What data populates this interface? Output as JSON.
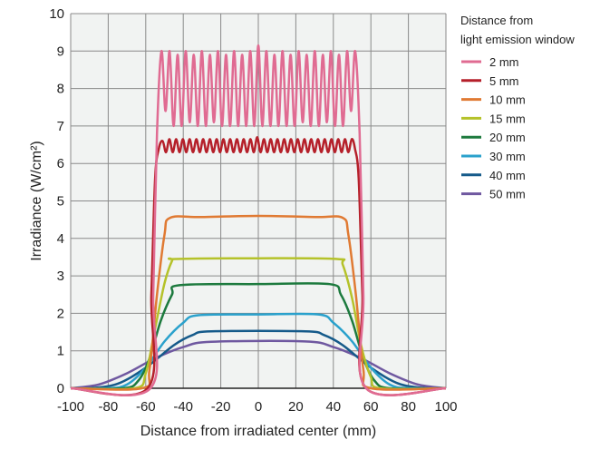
{
  "chart_data": {
    "type": "line",
    "xlabel": "Distance from irradiated center (mm)",
    "ylabel": "Irradiance (W/cm²)",
    "xlim": [
      -100,
      100
    ],
    "ylim": [
      0,
      10
    ],
    "xticks": [
      -100,
      -80,
      -60,
      -40,
      -20,
      0,
      20,
      40,
      60,
      80,
      100
    ],
    "yticks": [
      0,
      1,
      2,
      3,
      4,
      5,
      6,
      7,
      8,
      9,
      10
    ],
    "grid": true,
    "legend": {
      "title": [
        "Distance from",
        "light emission window"
      ],
      "placement": "right"
    },
    "series": [
      {
        "name": "2 mm",
        "color": "#e06b92",
        "points": [
          [
            -100,
            0
          ],
          [
            -57.5,
            0
          ],
          [
            -56,
            2.5
          ],
          [
            -54,
            6.8
          ],
          [
            -51.6,
            9.0
          ],
          [
            -49.45,
            7.4
          ],
          [
            -47.3,
            9.0
          ],
          [
            -45.15,
            7.0
          ],
          [
            -43,
            8.9
          ],
          [
            -40.85,
            7.0
          ],
          [
            -38.7,
            9.0
          ],
          [
            -36.55,
            7.1
          ],
          [
            -34.4,
            8.9
          ],
          [
            -32.25,
            7.0
          ],
          [
            -30.1,
            9.0
          ],
          [
            -27.95,
            7.0
          ],
          [
            -25.8,
            8.9
          ],
          [
            -23.65,
            7.1
          ],
          [
            -21.5,
            9.0
          ],
          [
            -19.35,
            7.0
          ],
          [
            -17.2,
            8.9
          ],
          [
            -15.05,
            7.0
          ],
          [
            -12.9,
            9.0
          ],
          [
            -10.75,
            7.0
          ],
          [
            -8.6,
            8.9
          ],
          [
            -6.45,
            7.0
          ],
          [
            -4.3,
            9.0
          ],
          [
            -2.15,
            7.0
          ],
          [
            0,
            9.15
          ],
          [
            2.15,
            7.0
          ],
          [
            4.3,
            9.0
          ],
          [
            6.45,
            7.0
          ],
          [
            8.6,
            8.9
          ],
          [
            10.75,
            7.0
          ],
          [
            12.9,
            9.0
          ],
          [
            15.05,
            7.0
          ],
          [
            17.2,
            8.9
          ],
          [
            19.35,
            7.0
          ],
          [
            21.5,
            9.0
          ],
          [
            23.65,
            7.1
          ],
          [
            25.8,
            8.9
          ],
          [
            27.95,
            7.0
          ],
          [
            30.1,
            9.0
          ],
          [
            32.25,
            7.0
          ],
          [
            34.4,
            8.9
          ],
          [
            36.55,
            7.1
          ],
          [
            38.7,
            9.0
          ],
          [
            40.85,
            7.0
          ],
          [
            43,
            8.9
          ],
          [
            45.15,
            7.0
          ],
          [
            47.3,
            9.0
          ],
          [
            49.45,
            7.4
          ],
          [
            51.6,
            9.0
          ],
          [
            54,
            6.8
          ],
          [
            56,
            2.5
          ],
          [
            57.5,
            0
          ],
          [
            100,
            0
          ]
        ]
      },
      {
        "name": "5 mm",
        "color": "#b5202a",
        "points": [
          [
            -100,
            0
          ],
          [
            -59,
            0
          ],
          [
            -57,
            2.5
          ],
          [
            -55,
            5.6
          ],
          [
            -53,
            6.4
          ],
          [
            -51,
            6.6
          ],
          [
            -49.2,
            6.3
          ],
          [
            -47.4,
            6.65
          ],
          [
            -45.6,
            6.3
          ],
          [
            -43.8,
            6.65
          ],
          [
            -42,
            6.3
          ],
          [
            -40.2,
            6.65
          ],
          [
            -38.4,
            6.3
          ],
          [
            -36.6,
            6.65
          ],
          [
            -34.8,
            6.3
          ],
          [
            -33,
            6.65
          ],
          [
            -31.2,
            6.3
          ],
          [
            -29.4,
            6.65
          ],
          [
            -27.6,
            6.3
          ],
          [
            -25.8,
            6.65
          ],
          [
            -24,
            6.3
          ],
          [
            -22.2,
            6.65
          ],
          [
            -20.4,
            6.3
          ],
          [
            -18.6,
            6.65
          ],
          [
            -16.8,
            6.3
          ],
          [
            -15,
            6.65
          ],
          [
            -13.2,
            6.3
          ],
          [
            -11.4,
            6.65
          ],
          [
            -9.6,
            6.3
          ],
          [
            -7.8,
            6.65
          ],
          [
            -6,
            6.3
          ],
          [
            -4.2,
            6.65
          ],
          [
            -2.4,
            6.3
          ],
          [
            -0.6,
            6.7
          ],
          [
            1.2,
            6.3
          ],
          [
            3,
            6.65
          ],
          [
            4.8,
            6.3
          ],
          [
            6.6,
            6.65
          ],
          [
            8.4,
            6.3
          ],
          [
            10.2,
            6.65
          ],
          [
            12,
            6.3
          ],
          [
            13.8,
            6.65
          ],
          [
            15.6,
            6.3
          ],
          [
            17.4,
            6.65
          ],
          [
            19.2,
            6.3
          ],
          [
            21,
            6.65
          ],
          [
            22.8,
            6.3
          ],
          [
            24.6,
            6.65
          ],
          [
            26.4,
            6.3
          ],
          [
            28.2,
            6.65
          ],
          [
            30,
            6.3
          ],
          [
            31.8,
            6.65
          ],
          [
            33.6,
            6.3
          ],
          [
            35.4,
            6.65
          ],
          [
            37.2,
            6.3
          ],
          [
            39,
            6.65
          ],
          [
            40.8,
            6.3
          ],
          [
            42.6,
            6.65
          ],
          [
            44.4,
            6.3
          ],
          [
            46.2,
            6.65
          ],
          [
            48,
            6.3
          ],
          [
            49.8,
            6.65
          ],
          [
            51.5,
            6.4
          ],
          [
            53.5,
            5.6
          ],
          [
            55.5,
            2.5
          ],
          [
            57.5,
            0
          ],
          [
            100,
            0
          ]
        ]
      },
      {
        "name": "10 mm",
        "color": "#e07a33",
        "points": [
          [
            -100,
            0
          ],
          [
            -62,
            0
          ],
          [
            -58,
            0.5
          ],
          [
            -54,
            2.5
          ],
          [
            -50,
            4.1
          ],
          [
            -47,
            4.55
          ],
          [
            -30,
            4.57
          ],
          [
            0,
            4.6
          ],
          [
            30,
            4.57
          ],
          [
            45,
            4.55
          ],
          [
            48,
            4.1
          ],
          [
            52,
            2.5
          ],
          [
            56,
            0.5
          ],
          [
            60,
            0
          ],
          [
            100,
            0
          ]
        ]
      },
      {
        "name": "15 mm",
        "color": "#b5c22a",
        "points": [
          [
            -100,
            0
          ],
          [
            -66,
            0
          ],
          [
            -60,
            0.4
          ],
          [
            -55,
            1.6
          ],
          [
            -50,
            2.8
          ],
          [
            -46,
            3.4
          ],
          [
            -44,
            3.45
          ],
          [
            0,
            3.47
          ],
          [
            42,
            3.45
          ],
          [
            45,
            3.3
          ],
          [
            50,
            2.4
          ],
          [
            55,
            1.1
          ],
          [
            60,
            0.3
          ],
          [
            65,
            0
          ],
          [
            100,
            0
          ]
        ]
      },
      {
        "name": "20 mm",
        "color": "#1d7a3e",
        "points": [
          [
            -100,
            0
          ],
          [
            -72,
            0
          ],
          [
            -64,
            0.2
          ],
          [
            -58,
            0.8
          ],
          [
            -52,
            1.8
          ],
          [
            -46,
            2.5
          ],
          [
            -42,
            2.75
          ],
          [
            0,
            2.78
          ],
          [
            38,
            2.78
          ],
          [
            44,
            2.5
          ],
          [
            50,
            1.8
          ],
          [
            56,
            0.8
          ],
          [
            62,
            0.2
          ],
          [
            70,
            0
          ],
          [
            100,
            0
          ]
        ]
      },
      {
        "name": "30 mm",
        "color": "#2aa1cc",
        "points": [
          [
            -100,
            0
          ],
          [
            -80,
            0
          ],
          [
            -70,
            0.1
          ],
          [
            -60,
            0.55
          ],
          [
            -50,
            1.25
          ],
          [
            -40,
            1.75
          ],
          [
            -32,
            1.95
          ],
          [
            0,
            1.97
          ],
          [
            32,
            1.97
          ],
          [
            40,
            1.75
          ],
          [
            50,
            1.25
          ],
          [
            60,
            0.55
          ],
          [
            70,
            0.1
          ],
          [
            80,
            0
          ],
          [
            100,
            0
          ]
        ]
      },
      {
        "name": "40 mm",
        "color": "#155a8a",
        "points": [
          [
            -100,
            0
          ],
          [
            -90,
            0
          ],
          [
            -75,
            0.12
          ],
          [
            -60,
            0.55
          ],
          [
            -45,
            1.15
          ],
          [
            -35,
            1.42
          ],
          [
            -25,
            1.52
          ],
          [
            25,
            1.52
          ],
          [
            35,
            1.42
          ],
          [
            45,
            1.15
          ],
          [
            60,
            0.55
          ],
          [
            75,
            0.12
          ],
          [
            90,
            0
          ],
          [
            100,
            0
          ]
        ]
      },
      {
        "name": "50 mm",
        "color": "#6f58a0",
        "points": [
          [
            -100,
            0
          ],
          [
            -85,
            0.1
          ],
          [
            -70,
            0.4
          ],
          [
            -55,
            0.8
          ],
          [
            -40,
            1.1
          ],
          [
            -25,
            1.24
          ],
          [
            25,
            1.25
          ],
          [
            40,
            1.1
          ],
          [
            55,
            0.8
          ],
          [
            70,
            0.4
          ],
          [
            85,
            0.1
          ],
          [
            100,
            0
          ]
        ]
      }
    ]
  }
}
